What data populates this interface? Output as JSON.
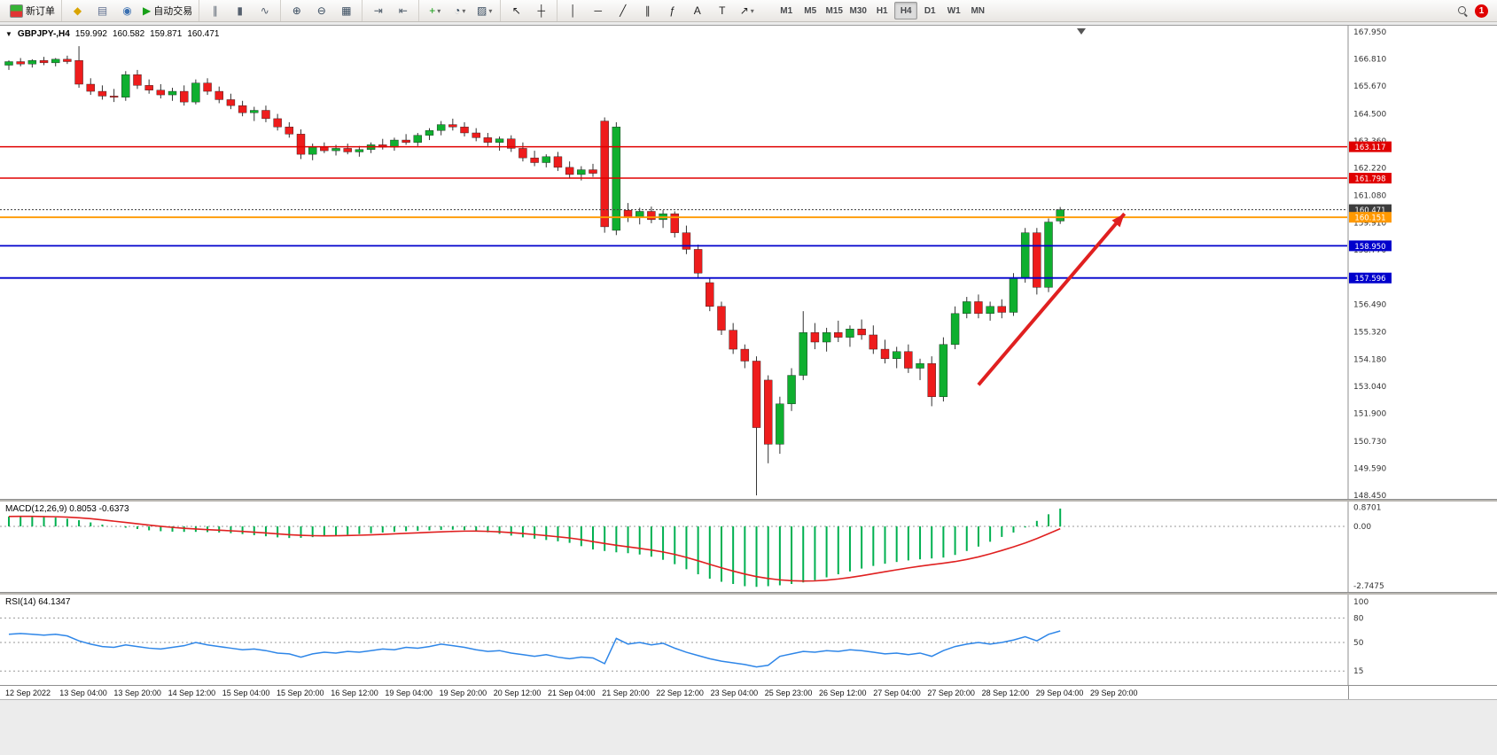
{
  "toolbar": {
    "new_order": "新订单",
    "auto_trading": "自动交易",
    "groups": [
      [
        {
          "icon": "new-order-icon",
          "label": "新订单",
          "glyph": "",
          "special": "neworder"
        }
      ],
      [
        {
          "icon": "profiles-icon",
          "glyph": "◆",
          "color": "#d9a400"
        },
        {
          "icon": "print-icon",
          "glyph": "▤",
          "color": "#5f6f8f"
        },
        {
          "icon": "sound-icon",
          "glyph": "◉",
          "color": "#3a6fb0"
        },
        {
          "icon": "auto-trading-icon",
          "label": "自动交易",
          "glyph": "▶",
          "color": "#18a018"
        }
      ],
      [
        {
          "icon": "bar-chart-icon",
          "glyph": "∥",
          "color": "#55606e"
        },
        {
          "icon": "candlestick-chart-icon",
          "glyph": "▮",
          "color": "#55606e"
        },
        {
          "icon": "line-chart-icon",
          "glyph": "∿",
          "color": "#55606e"
        }
      ],
      [
        {
          "icon": "zoom-in-icon",
          "glyph": "⊕",
          "color": "#35485c"
        },
        {
          "icon": "zoom-out-icon",
          "glyph": "⊖",
          "color": "#35485c"
        },
        {
          "icon": "tile-windows-icon",
          "glyph": "▦",
          "color": "#35485c"
        }
      ],
      [
        {
          "icon": "auto-scroll-icon",
          "glyph": "⇥",
          "color": "#4c5a68"
        },
        {
          "icon": "chart-shift-icon",
          "glyph": "⇤",
          "color": "#4c5a68"
        }
      ],
      [
        {
          "icon": "indicators-icon",
          "glyph": "+",
          "color": "#0f9a0f",
          "dropdown": true
        },
        {
          "icon": "periods-icon",
          "glyph": "◔",
          "color": "#35485c",
          "dropdown": true
        },
        {
          "icon": "templates-icon",
          "glyph": "▨",
          "color": "#35485c",
          "dropdown": true
        }
      ],
      [
        {
          "icon": "cursor-icon",
          "glyph": "↖",
          "color": "#222222"
        },
        {
          "icon": "crosshair-icon",
          "glyph": "┼",
          "color": "#222222"
        }
      ],
      [
        {
          "icon": "vertical-line-icon",
          "glyph": "│",
          "color": "#222222"
        },
        {
          "icon": "horizontal-line-icon",
          "glyph": "─",
          "color": "#222222"
        },
        {
          "icon": "trendline-icon",
          "glyph": "╱",
          "color": "#222222"
        },
        {
          "icon": "equidistant-channel-icon",
          "glyph": "∥",
          "color": "#222222"
        },
        {
          "icon": "fibonacci-icon",
          "glyph": "ƒ",
          "color": "#222222"
        },
        {
          "icon": "text-icon",
          "glyph": "A",
          "color": "#222222"
        },
        {
          "icon": "text-label-icon",
          "glyph": "T",
          "color": "#222222"
        },
        {
          "icon": "arrows-icon",
          "glyph": "↗",
          "color": "#222222",
          "dropdown": true
        }
      ]
    ],
    "timeframes": [
      "M1",
      "M5",
      "M15",
      "M30",
      "H1",
      "H4",
      "D1",
      "W1",
      "MN"
    ],
    "active_timeframe": "H4",
    "notification_badge": "1"
  },
  "chart_header": {
    "symbol_period": "GBPJPY-,H4",
    "open": "159.992",
    "high": "160.582",
    "low": "159.871",
    "close": "160.471"
  },
  "indicators": {
    "macd_label": "MACD(12,26,9) 0.8053 -0.6373",
    "macd_axis": [
      "0.8701",
      "0.00",
      "-2.7475"
    ],
    "rsi_label": "RSI(14) 64.1347",
    "rsi_axis": [
      "100",
      "80",
      "50",
      "15"
    ]
  },
  "colors": {
    "bull": "#0faf2f",
    "bear": "#ee1c1c",
    "wick": "#333333",
    "macd_hist": "#00b050",
    "macd_signal": "#e02020",
    "rsi_line": "#2e86e8",
    "resistance_red": "#e00000",
    "support_blue": "#0000cc",
    "pivot_orange": "#ff9900",
    "bid_dark": "#3c3c3c",
    "arrow_red": "#e02020"
  },
  "chart_data": {
    "type": "candlestick",
    "symbol": "GBPJPY-",
    "timeframe": "H4",
    "ylim": [
      148.45,
      167.95
    ],
    "price_axis_ticks": [
      "167.950",
      "166.810",
      "165.670",
      "164.500",
      "163.360",
      "162.220",
      "161.080",
      "159.910",
      "158.770",
      "157.630",
      "156.490",
      "155.320",
      "154.180",
      "153.040",
      "151.900",
      "150.730",
      "149.590",
      "148.450"
    ],
    "time_axis_ticks": [
      "12 Sep 2022",
      "13 Sep 04:00",
      "13 Sep 20:00",
      "14 Sep 12:00",
      "15 Sep 04:00",
      "15 Sep 20:00",
      "16 Sep 12:00",
      "19 Sep 04:00",
      "19 Sep 20:00",
      "20 Sep 12:00",
      "21 Sep 04:00",
      "21 Sep 20:00",
      "22 Sep 12:00",
      "23 Sep 04:00",
      "25 Sep 23:00",
      "26 Sep 12:00",
      "27 Sep 04:00",
      "27 Sep 20:00",
      "28 Sep 12:00",
      "29 Sep 04:00",
      "29 Sep 20:00"
    ],
    "candles_ohlc": [
      [
        166.55,
        166.75,
        166.35,
        166.7
      ],
      [
        166.7,
        166.85,
        166.5,
        166.6
      ],
      [
        166.6,
        166.8,
        166.45,
        166.75
      ],
      [
        166.75,
        166.9,
        166.55,
        166.65
      ],
      [
        166.65,
        166.85,
        166.5,
        166.8
      ],
      [
        166.8,
        166.95,
        166.6,
        166.7
      ],
      [
        166.75,
        167.35,
        165.6,
        165.75
      ],
      [
        165.75,
        166.0,
        165.3,
        165.45
      ],
      [
        165.45,
        165.7,
        165.1,
        165.25
      ],
      [
        165.25,
        165.55,
        165.0,
        165.2
      ],
      [
        165.2,
        166.3,
        165.05,
        166.15
      ],
      [
        166.15,
        166.35,
        165.55,
        165.7
      ],
      [
        165.7,
        165.95,
        165.35,
        165.5
      ],
      [
        165.5,
        165.75,
        165.15,
        165.3
      ],
      [
        165.3,
        165.6,
        165.05,
        165.45
      ],
      [
        165.45,
        165.7,
        164.85,
        165.0
      ],
      [
        165.0,
        165.95,
        164.9,
        165.8
      ],
      [
        165.8,
        166.0,
        165.3,
        165.45
      ],
      [
        165.45,
        165.65,
        164.95,
        165.1
      ],
      [
        165.1,
        165.35,
        164.7,
        164.85
      ],
      [
        164.85,
        165.05,
        164.4,
        164.55
      ],
      [
        164.55,
        164.8,
        164.2,
        164.65
      ],
      [
        164.65,
        164.85,
        164.15,
        164.3
      ],
      [
        164.3,
        164.5,
        163.8,
        163.95
      ],
      [
        163.95,
        164.15,
        163.5,
        163.65
      ],
      [
        163.65,
        163.85,
        162.6,
        162.8
      ],
      [
        162.8,
        163.25,
        162.55,
        163.1
      ],
      [
        163.1,
        163.3,
        162.85,
        162.95
      ],
      [
        162.95,
        163.2,
        162.75,
        163.05
      ],
      [
        163.05,
        163.25,
        162.8,
        162.9
      ],
      [
        162.9,
        163.15,
        162.7,
        163.0
      ],
      [
        163.0,
        163.3,
        162.85,
        163.2
      ],
      [
        163.2,
        163.45,
        163.0,
        163.1
      ],
      [
        163.1,
        163.5,
        162.95,
        163.4
      ],
      [
        163.4,
        163.65,
        163.2,
        163.3
      ],
      [
        163.3,
        163.7,
        163.15,
        163.6
      ],
      [
        163.6,
        163.9,
        163.4,
        163.8
      ],
      [
        163.8,
        164.2,
        163.6,
        164.05
      ],
      [
        164.05,
        164.3,
        163.8,
        163.95
      ],
      [
        163.95,
        164.15,
        163.55,
        163.7
      ],
      [
        163.7,
        163.9,
        163.35,
        163.5
      ],
      [
        163.5,
        163.7,
        163.15,
        163.3
      ],
      [
        163.3,
        163.55,
        162.95,
        163.45
      ],
      [
        163.45,
        163.6,
        162.9,
        163.05
      ],
      [
        163.05,
        163.3,
        162.5,
        162.65
      ],
      [
        162.65,
        162.95,
        162.3,
        162.45
      ],
      [
        162.45,
        162.8,
        162.25,
        162.7
      ],
      [
        162.7,
        162.9,
        162.1,
        162.25
      ],
      [
        162.25,
        162.5,
        161.8,
        161.95
      ],
      [
        161.95,
        162.3,
        161.7,
        162.15
      ],
      [
        162.15,
        162.4,
        161.85,
        162.0
      ],
      [
        164.2,
        164.35,
        159.5,
        159.75
      ],
      [
        159.6,
        164.15,
        159.4,
        163.95
      ],
      [
        160.45,
        160.75,
        159.95,
        160.15
      ],
      [
        160.15,
        160.55,
        159.85,
        160.4
      ],
      [
        160.4,
        160.6,
        159.9,
        160.05
      ],
      [
        160.05,
        160.45,
        159.7,
        160.3
      ],
      [
        160.3,
        160.4,
        159.3,
        159.5
      ],
      [
        159.5,
        159.8,
        158.6,
        158.8
      ],
      [
        158.8,
        159.0,
        157.6,
        157.8
      ],
      [
        157.4,
        157.6,
        156.2,
        156.4
      ],
      [
        156.4,
        156.6,
        155.2,
        155.4
      ],
      [
        155.4,
        155.7,
        154.4,
        154.6
      ],
      [
        154.6,
        154.8,
        153.8,
        154.1
      ],
      [
        154.1,
        154.3,
        148.45,
        151.3
      ],
      [
        153.3,
        153.5,
        149.8,
        150.6
      ],
      [
        150.6,
        152.6,
        150.2,
        152.3
      ],
      [
        152.3,
        153.8,
        152.0,
        153.5
      ],
      [
        153.5,
        156.2,
        153.3,
        155.3
      ],
      [
        155.3,
        155.7,
        154.6,
        154.9
      ],
      [
        154.9,
        155.5,
        154.5,
        155.3
      ],
      [
        155.3,
        155.8,
        154.9,
        155.1
      ],
      [
        155.1,
        155.6,
        154.7,
        155.45
      ],
      [
        155.45,
        155.85,
        155.0,
        155.2
      ],
      [
        155.2,
        155.6,
        154.4,
        154.6
      ],
      [
        154.6,
        155.0,
        154.0,
        154.2
      ],
      [
        154.2,
        154.7,
        153.8,
        154.5
      ],
      [
        154.5,
        154.8,
        153.6,
        153.8
      ],
      [
        153.8,
        154.2,
        153.3,
        154.0
      ],
      [
        154.0,
        154.3,
        152.2,
        152.6
      ],
      [
        152.6,
        155.1,
        152.4,
        154.8
      ],
      [
        154.8,
        156.4,
        154.6,
        156.1
      ],
      [
        156.1,
        156.8,
        155.9,
        156.6
      ],
      [
        156.6,
        156.9,
        155.9,
        156.1
      ],
      [
        156.1,
        156.6,
        155.8,
        156.4
      ],
      [
        156.4,
        156.7,
        155.9,
        156.15
      ],
      [
        156.15,
        157.8,
        156.0,
        157.6
      ],
      [
        157.6,
        159.7,
        157.4,
        159.5
      ],
      [
        159.5,
        159.7,
        156.9,
        157.2
      ],
      [
        157.2,
        160.1,
        157.0,
        159.95
      ],
      [
        159.992,
        160.582,
        159.871,
        160.471
      ]
    ],
    "hlines": [
      {
        "price": 163.117,
        "label": "163.117",
        "color": "#e00000",
        "style": "solid",
        "width": 1.4
      },
      {
        "price": 161.798,
        "label": "161.798",
        "color": "#e00000",
        "style": "solid",
        "width": 1.4
      },
      {
        "price": 160.471,
        "label": "160.471",
        "color": "#3c3c3c",
        "style": "dotted",
        "width": 1
      },
      {
        "price": 160.151,
        "label": "160.151",
        "color": "#ff9900",
        "style": "solid",
        "width": 1.8
      },
      {
        "price": 158.95,
        "label": "158.950",
        "color": "#0000cc",
        "style": "solid",
        "width": 1.8
      },
      {
        "price": 157.596,
        "label": "157.596",
        "color": "#0000cc",
        "style": "solid",
        "width": 1.8
      }
    ],
    "trend_arrow": {
      "bar_from": 83,
      "price_from": 153.1,
      "bar_to": 95.5,
      "price_to": 160.3
    },
    "macd": {
      "max": 0.8701,
      "min": -2.7475,
      "signal_period": 9,
      "values": [
        0.45,
        0.48,
        0.45,
        0.42,
        0.4,
        0.35,
        0.28,
        0.18,
        0.08,
        0.0,
        -0.06,
        -0.12,
        -0.18,
        -0.22,
        -0.24,
        -0.25,
        -0.25,
        -0.26,
        -0.28,
        -0.31,
        -0.35,
        -0.4,
        -0.45,
        -0.5,
        -0.53,
        -0.52,
        -0.49,
        -0.45,
        -0.41,
        -0.38,
        -0.35,
        -0.31,
        -0.28,
        -0.25,
        -0.22,
        -0.2,
        -0.18,
        -0.16,
        -0.15,
        -0.17,
        -0.21,
        -0.27,
        -0.34,
        -0.42,
        -0.5,
        -0.56,
        -0.62,
        -0.68,
        -0.75,
        -0.9,
        -1.05,
        -1.12,
        -1.18,
        -1.22,
        -1.28,
        -1.38,
        -1.52,
        -1.72,
        -1.95,
        -2.18,
        -2.38,
        -2.52,
        -2.62,
        -2.72,
        -2.75,
        -2.72,
        -2.68,
        -2.62,
        -2.55,
        -2.45,
        -2.32,
        -2.18,
        -2.05,
        -1.92,
        -1.8,
        -1.7,
        -1.62,
        -1.55,
        -1.5,
        -1.46,
        -1.42,
        -1.3,
        -1.12,
        -0.92,
        -0.7,
        -0.48,
        -0.28,
        -0.05,
        0.25,
        0.55,
        0.81
      ]
    },
    "rsi": {
      "levels": [
        80,
        50,
        15
      ],
      "values": [
        60,
        61,
        60,
        59,
        60,
        58,
        52,
        48,
        45,
        44,
        47,
        45,
        43,
        42,
        44,
        46,
        50,
        47,
        45,
        43,
        41,
        42,
        40,
        37,
        36,
        32,
        36,
        38,
        37,
        39,
        38,
        40,
        42,
        41,
        44,
        43,
        45,
        48,
        46,
        44,
        41,
        39,
        40,
        37,
        35,
        33,
        35,
        32,
        30,
        32,
        31,
        24,
        55,
        48,
        50,
        47,
        49,
        43,
        38,
        34,
        30,
        27,
        25,
        23,
        20,
        22,
        33,
        36,
        39,
        38,
        40,
        39,
        41,
        40,
        38,
        36,
        37,
        35,
        37,
        33,
        40,
        45,
        48,
        50,
        48,
        50,
        53,
        57,
        52,
        60,
        64.1
      ]
    }
  }
}
